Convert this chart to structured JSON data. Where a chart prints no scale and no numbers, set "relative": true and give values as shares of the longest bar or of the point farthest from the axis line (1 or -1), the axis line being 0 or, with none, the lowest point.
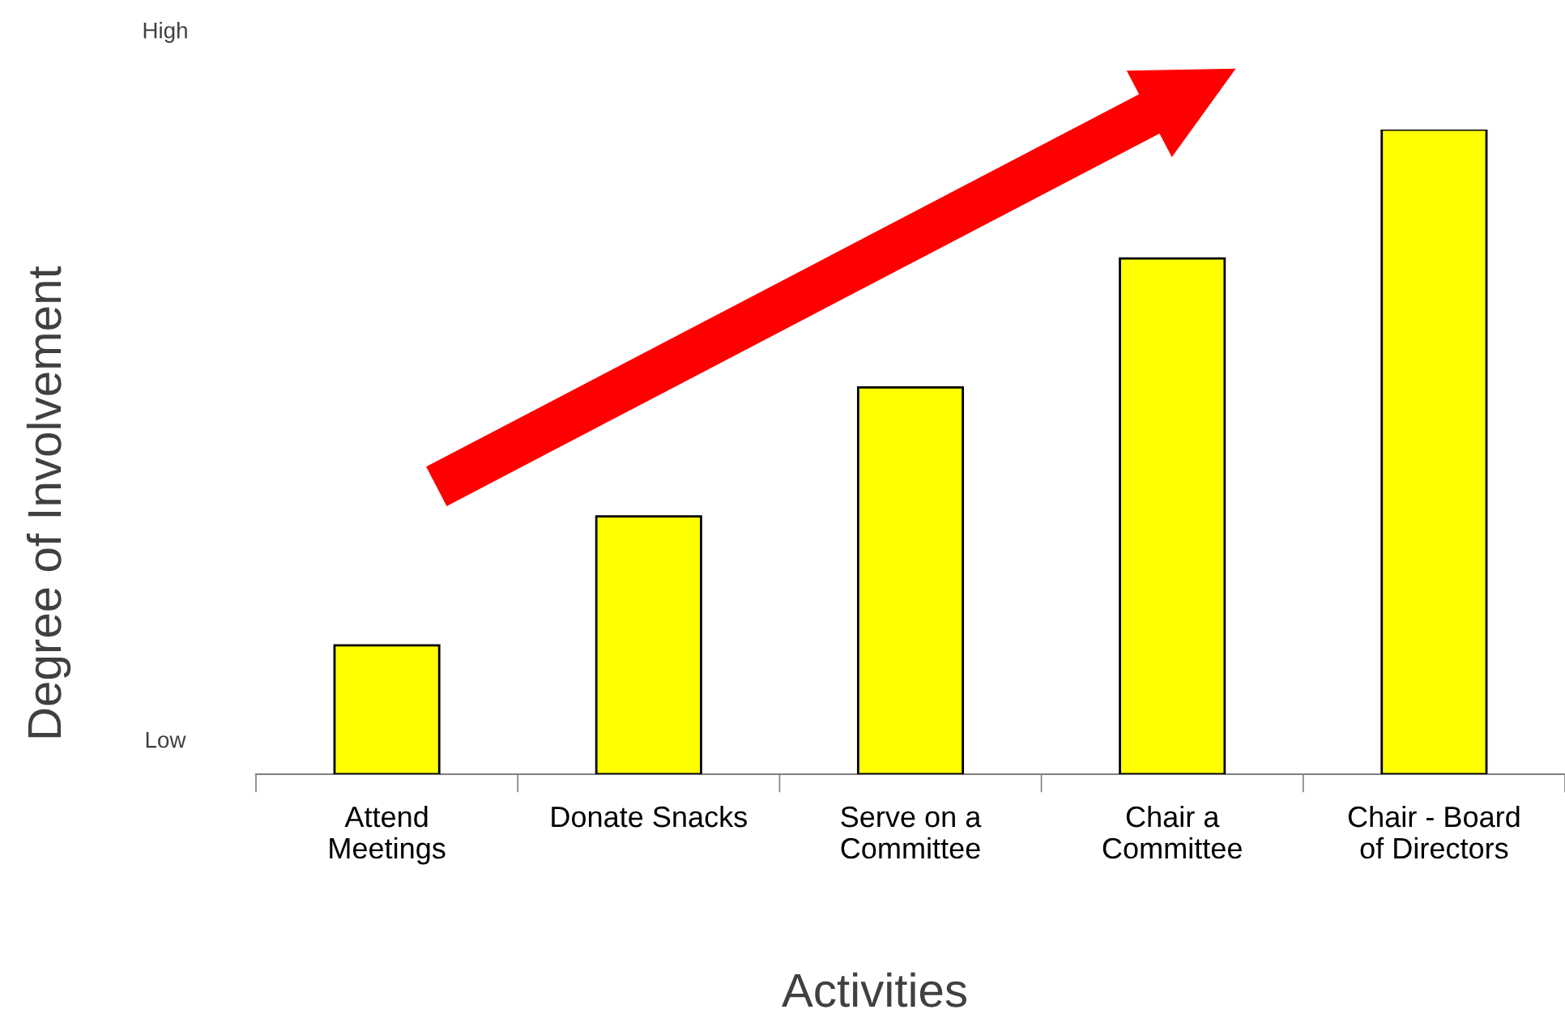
{
  "chart_data": {
    "type": "bar",
    "categories": [
      "Attend\nMeetings",
      "Donate Snacks",
      "Serve on a\nCommittee",
      "Chair a\nCommittee",
      "Chair - Board\nof Directors"
    ],
    "values": [
      0.2,
      0.4,
      0.6,
      0.8,
      1.0
    ],
    "color": "#ffff00",
    "relative": true,
    "xlabel": "Activities",
    "ylabel": "Degree of Involvement",
    "annotations": [
      "High",
      "Low"
    ],
    "grid": false,
    "legend": false
  }
}
